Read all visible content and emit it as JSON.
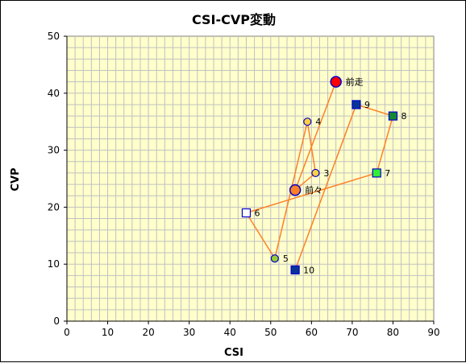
{
  "chart_data": {
    "type": "scatter",
    "title": "CSI-CVP変動",
    "xlabel": "CSI",
    "ylabel": "CVP",
    "xlim": [
      0,
      90
    ],
    "ylim": [
      0,
      50
    ],
    "xticks": [
      "0",
      "10",
      "20",
      "30",
      "40",
      "50",
      "60",
      "70",
      "80",
      "90"
    ],
    "yticks": [
      "0",
      "10",
      "20",
      "30",
      "40",
      "50"
    ],
    "grid": true,
    "plot_background": "#ffffcc",
    "grid_color": "#c0c0c0",
    "line_color": "#ff7f27",
    "path_order": [
      "前走",
      "前々",
      "3",
      "4",
      "5",
      "6",
      "7",
      "8",
      "9",
      "10"
    ],
    "points": [
      {
        "label": "前走",
        "x": 66,
        "y": 42,
        "marker": "circle-large",
        "fill": "#ff0000",
        "stroke": "#0000cc"
      },
      {
        "label": "前々",
        "x": 56,
        "y": 23,
        "marker": "circle-large",
        "fill": "#ff7f27",
        "stroke": "#0000cc"
      },
      {
        "label": "3",
        "x": 61,
        "y": 26,
        "marker": "circle",
        "fill": "#ffd040",
        "stroke": "#0000cc"
      },
      {
        "label": "4",
        "x": 59,
        "y": 35,
        "marker": "circle",
        "fill": "#ffd040",
        "stroke": "#0000cc"
      },
      {
        "label": "5",
        "x": 51,
        "y": 11,
        "marker": "circle",
        "fill": "#9acd32",
        "stroke": "#0000cc"
      },
      {
        "label": "6",
        "x": 44,
        "y": 19,
        "marker": "square",
        "fill": "#ffffff",
        "stroke": "#0000cc"
      },
      {
        "label": "7",
        "x": 76,
        "y": 26,
        "marker": "square",
        "fill": "#33ee33",
        "stroke": "#0000cc"
      },
      {
        "label": "8",
        "x": 80,
        "y": 36,
        "marker": "square",
        "fill": "#118833",
        "stroke": "#0000cc"
      },
      {
        "label": "9",
        "x": 71,
        "y": 38,
        "marker": "square",
        "fill": "#0a3399",
        "stroke": "#0000cc"
      },
      {
        "label": "10",
        "x": 56,
        "y": 9,
        "marker": "square",
        "fill": "#0a3399",
        "stroke": "#0000cc"
      }
    ]
  }
}
